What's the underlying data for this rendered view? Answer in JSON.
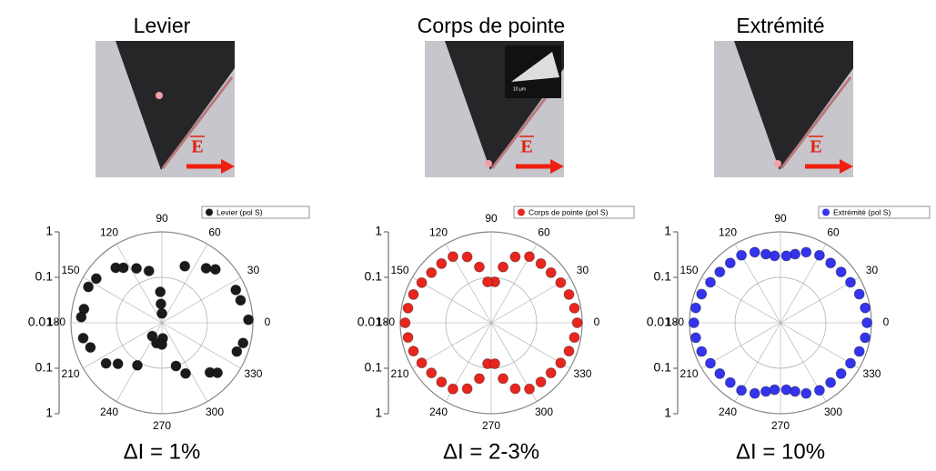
{
  "chart_data": [
    {
      "type": "polar",
      "title": "Levier",
      "photo_label": "E",
      "annotation": "ΔI = 1%",
      "rlim": [
        0.01,
        1
      ],
      "rscale": "log",
      "rticks": [
        0.01,
        0.1,
        1
      ],
      "thetaticks": [
        0,
        30,
        60,
        90,
        120,
        150,
        180,
        210,
        240,
        270,
        300,
        330
      ],
      "series": [
        {
          "name": "Levier (pol S)",
          "color": "#1a1a1a",
          "theta": [
            130,
            125,
            115,
            104,
            68,
            51,
            45,
            146,
            154,
            24,
            16,
            170,
            176,
            90,
            2,
            191,
            199,
            346,
            339,
            234,
            255,
            273,
            270,
            216,
            223,
            240,
            288,
            295,
            314,
            318,
            93,
            93
          ],
          "values": [
            0.38,
            0.3,
            0.21,
            0.15,
            0.22,
            0.35,
            0.46,
            0.55,
            0.63,
            0.6,
            0.63,
            0.55,
            0.6,
            0.016,
            0.8,
            0.58,
            0.46,
            0.69,
            0.58,
            0.023,
            0.029,
            0.022,
            0.03,
            0.33,
            0.21,
            0.12,
            0.1,
            0.17,
            0.33,
            0.44,
            0.048,
            0.026
          ]
        }
      ]
    },
    {
      "type": "polar",
      "title": "Corps de pointe",
      "photo_label": "E",
      "inset_label": "10 µm",
      "annotation": "ΔI = 2-3%",
      "rlim": [
        0.01,
        1
      ],
      "rscale": "log",
      "rticks": [
        0.01,
        0.1,
        1
      ],
      "thetaticks": [
        0,
        30,
        60,
        90,
        120,
        150,
        180,
        210,
        240,
        270,
        300,
        330
      ],
      "series": [
        {
          "name": "Corps de pointe (pol S)",
          "color": "#e8261e",
          "theta": [
            0,
            10,
            20,
            30,
            40,
            50,
            60,
            70,
            78,
            85,
            95,
            102,
            110,
            120,
            130,
            140,
            150,
            160,
            170,
            180,
            190,
            200,
            210,
            220,
            230,
            240,
            250,
            258,
            265,
            275,
            282,
            290,
            300,
            310,
            320,
            330,
            340,
            350
          ],
          "values": [
            0.78,
            0.72,
            0.66,
            0.58,
            0.52,
            0.5,
            0.48,
            0.35,
            0.18,
            0.08,
            0.08,
            0.18,
            0.35,
            0.48,
            0.5,
            0.52,
            0.58,
            0.66,
            0.72,
            0.78,
            0.72,
            0.66,
            0.58,
            0.52,
            0.5,
            0.48,
            0.35,
            0.18,
            0.08,
            0.08,
            0.18,
            0.35,
            0.48,
            0.5,
            0.52,
            0.58,
            0.66,
            0.72
          ]
        }
      ]
    },
    {
      "type": "polar",
      "title": "Extrémité",
      "photo_label": "E",
      "annotation": "ΔI = 10%",
      "rlim": [
        0.01,
        1
      ],
      "rscale": "log",
      "rticks": [
        0.01,
        0.1,
        1
      ],
      "thetaticks": [
        0,
        30,
        60,
        90,
        120,
        150,
        180,
        210,
        240,
        270,
        300,
        330
      ],
      "series": [
        {
          "name": "Extrémité  (pol S)",
          "color": "#3434ee",
          "theta": [
            0,
            10,
            20,
            30,
            40,
            50,
            60,
            70,
            78,
            85,
            95,
            102,
            110,
            120,
            130,
            140,
            150,
            160,
            170,
            180,
            190,
            200,
            210,
            220,
            230,
            240,
            250,
            258,
            265,
            275,
            282,
            290,
            300,
            310,
            320,
            330,
            340,
            350
          ],
          "values": [
            0.8,
            0.78,
            0.7,
            0.6,
            0.55,
            0.52,
            0.52,
            0.45,
            0.35,
            0.3,
            0.3,
            0.35,
            0.45,
            0.52,
            0.52,
            0.55,
            0.6,
            0.7,
            0.78,
            0.8,
            0.78,
            0.7,
            0.6,
            0.55,
            0.52,
            0.52,
            0.45,
            0.35,
            0.3,
            0.3,
            0.35,
            0.45,
            0.52,
            0.52,
            0.55,
            0.6,
            0.7,
            0.78
          ]
        }
      ]
    }
  ]
}
